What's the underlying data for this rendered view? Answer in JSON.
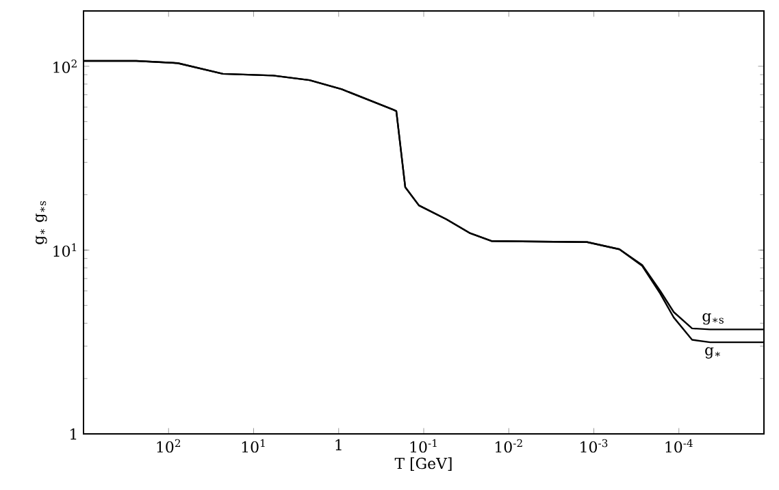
{
  "chart_data": {
    "type": "line",
    "xlabel": "T  [GeV]",
    "ylabel": "g$_{∗}$   g$_{∗s}$",
    "log": "xy",
    "xlim": [
      1000,
      1e-05
    ],
    "ylim": [
      1,
      200
    ],
    "xticks": [
      {
        "value": 100,
        "label": "10$^{2}$"
      },
      {
        "value": 10,
        "label": "10$^{1}$"
      },
      1,
      {
        "value": 0.1,
        "label": "10$^{-1}$"
      },
      {
        "value": 0.01,
        "label": "10$^{-2}$"
      },
      {
        "value": 0.001,
        "label": "10$^{-3}$"
      },
      {
        "value": 0.0001,
        "label": "10$^{-4}$"
      }
    ],
    "yticks": [
      1,
      {
        "value": 10,
        "label": "10$^{1}$"
      },
      {
        "value": 100,
        "label": "10$^{2}$"
      }
    ],
    "series": [
      {
        "name": "g$_{∗s}$",
        "color": "#000000",
        "x": [
          1000,
          240,
          78,
          23,
          5.9,
          2.2,
          0.92,
          0.227,
          0.21,
          0.165,
          0.114,
          0.054,
          0.029,
          0.016,
          0.0012,
          0.0005,
          0.00027,
          0.000166,
          0.000115,
          7e-05,
          4.3e-05,
          1e-05
        ],
        "values": [
          107,
          107,
          104,
          91,
          89,
          84,
          75,
          58,
          57,
          22,
          17.5,
          14.7,
          12.4,
          11.2,
          11.05,
          10.1,
          8.3,
          6.0,
          4.6,
          3.75,
          3.7,
          3.7
        ]
      },
      {
        "name": "g$_{∗}$",
        "color": "#000000",
        "x": [
          1000,
          240,
          78,
          23,
          5.9,
          2.2,
          0.92,
          0.227,
          0.21,
          0.165,
          0.114,
          0.054,
          0.029,
          0.016,
          0.0012,
          0.0005,
          0.00027,
          0.000166,
          0.000115,
          7e-05,
          4.3e-05,
          1e-05
        ],
        "values": [
          107,
          107,
          104,
          91,
          89,
          84,
          75,
          58,
          57,
          22,
          17.5,
          14.7,
          12.4,
          11.2,
          11.05,
          10.1,
          8.2,
          5.8,
          4.3,
          3.25,
          3.15,
          3.15
        ]
      }
    ]
  }
}
